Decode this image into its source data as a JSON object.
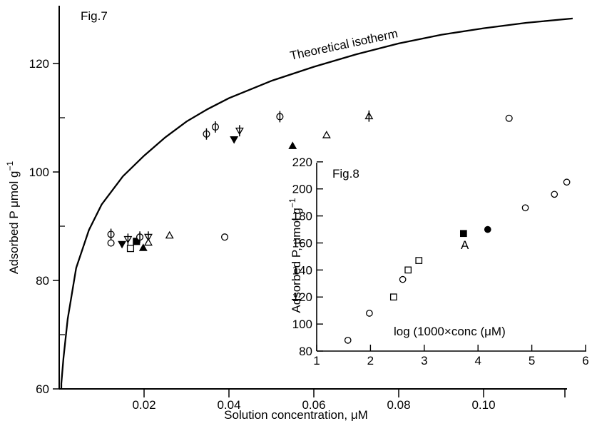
{
  "chart_data": [
    {
      "label": "Fig.7",
      "type": "scatter",
      "xlabel": "Solution concentration,  μM",
      "ylabel_text": "Adsorbed P  μmol g",
      "ylabel_sup": "−1",
      "xlim": [
        0.0,
        0.124
      ],
      "ylim": [
        60,
        130
      ],
      "xticks": [
        0.02,
        0.04,
        0.06,
        0.08,
        0.1
      ],
      "xtick_labels": [
        "0.02",
        "0.04",
        "0.06",
        "0.08",
        "0.10"
      ],
      "yticks": [
        60,
        80,
        100,
        120
      ],
      "ytick_labels": [
        "60",
        "80",
        "100",
        "120"
      ],
      "curve": {
        "name": "Theoretical isotherm",
        "x": [
          0.0005,
          0.001,
          0.002,
          0.004,
          0.007,
          0.01,
          0.015,
          0.02,
          0.025,
          0.03,
          0.035,
          0.04,
          0.05,
          0.06,
          0.07,
          0.08,
          0.09,
          0.1,
          0.11,
          0.121
        ],
        "y": [
          61.0,
          65.7,
          72.9,
          82.3,
          89.3,
          94.0,
          99.2,
          103.0,
          106.4,
          109.3,
          111.6,
          113.6,
          116.8,
          119.4,
          121.7,
          123.7,
          125.3,
          126.5,
          127.5,
          128.3
        ]
      },
      "points": [
        {
          "x": 0.0122,
          "y": 88.5,
          "marker": "circle-bar"
        },
        {
          "x": 0.0122,
          "y": 86.9,
          "marker": "circle"
        },
        {
          "x": 0.0148,
          "y": 86.7,
          "marker": "triangle-down-filled"
        },
        {
          "x": 0.0162,
          "y": 87.6,
          "marker": "triangle-down-bar"
        },
        {
          "x": 0.0168,
          "y": 85.9,
          "marker": "square"
        },
        {
          "x": 0.0182,
          "y": 87.2,
          "marker": "square-filled"
        },
        {
          "x": 0.019,
          "y": 88.0,
          "marker": "circle-bar"
        },
        {
          "x": 0.0198,
          "y": 86.0,
          "marker": "triangle-up-filled"
        },
        {
          "x": 0.021,
          "y": 88.0,
          "marker": "triangle-down-bar"
        },
        {
          "x": 0.021,
          "y": 87.0,
          "marker": "triangle-up"
        },
        {
          "x": 0.026,
          "y": 88.3,
          "marker": "triangle-up"
        },
        {
          "x": 0.0347,
          "y": 107.0,
          "marker": "circle-bar"
        },
        {
          "x": 0.0368,
          "y": 108.3,
          "marker": "circle-bar"
        },
        {
          "x": 0.039,
          "y": 88.0,
          "marker": "circle"
        },
        {
          "x": 0.0412,
          "y": 106.0,
          "marker": "triangle-down-filled"
        },
        {
          "x": 0.0425,
          "y": 107.6,
          "marker": "triangle-down-bar"
        },
        {
          "x": 0.052,
          "y": 110.2,
          "marker": "circle-bar"
        },
        {
          "x": 0.055,
          "y": 104.8,
          "marker": "triangle-up-filled"
        },
        {
          "x": 0.063,
          "y": 106.8,
          "marker": "triangle-up"
        },
        {
          "x": 0.073,
          "y": 110.3,
          "marker": "triangle-up-bar"
        },
        {
          "x": 0.106,
          "y": 109.9,
          "marker": "circle"
        }
      ]
    },
    {
      "label": "Fig.8",
      "type": "scatter",
      "ylabel_text": "Adsorbed P, μmol g",
      "ylabel_sup": "−1",
      "xlabel": "log (1000×conc (μM)",
      "annotation": "A",
      "xlim": [
        1,
        6
      ],
      "ylim": [
        80,
        220
      ],
      "xticks": [
        1,
        2,
        3,
        4,
        5,
        6
      ],
      "xtick_labels": [
        "1",
        "2",
        "3",
        "4",
        "5",
        "6"
      ],
      "yticks": [
        80,
        100,
        120,
        140,
        160,
        180,
        200,
        220
      ],
      "ytick_labels": [
        "80",
        "100",
        "120",
        "140",
        "160",
        "180",
        "200",
        "220"
      ],
      "points": [
        {
          "x": 1.58,
          "y": 88,
          "marker": "circle"
        },
        {
          "x": 1.98,
          "y": 108,
          "marker": "circle"
        },
        {
          "x": 2.43,
          "y": 120,
          "marker": "square"
        },
        {
          "x": 2.6,
          "y": 133,
          "marker": "circle"
        },
        {
          "x": 2.7,
          "y": 140,
          "marker": "square"
        },
        {
          "x": 2.9,
          "y": 147,
          "marker": "square"
        },
        {
          "x": 3.73,
          "y": 167,
          "marker": "square-filled"
        },
        {
          "x": 4.18,
          "y": 170,
          "marker": "circle-filled"
        },
        {
          "x": 4.88,
          "y": 186,
          "marker": "circle"
        },
        {
          "x": 5.42,
          "y": 196,
          "marker": "circle"
        },
        {
          "x": 5.65,
          "y": 205,
          "marker": "circle"
        }
      ]
    }
  ]
}
